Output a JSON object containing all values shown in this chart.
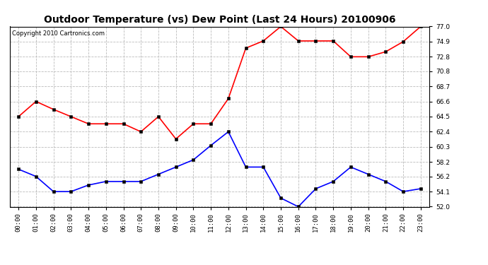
{
  "title": "Outdoor Temperature (vs) Dew Point (Last 24 Hours) 20100906",
  "copyright": "Copyright 2010 Cartronics.com",
  "hours": [
    "00:00",
    "01:00",
    "02:00",
    "03:00",
    "04:00",
    "05:00",
    "06:00",
    "07:00",
    "08:00",
    "09:00",
    "10:00",
    "11:00",
    "12:00",
    "13:00",
    "14:00",
    "15:00",
    "16:00",
    "17:00",
    "18:00",
    "19:00",
    "20:00",
    "21:00",
    "22:00",
    "23:00"
  ],
  "temp": [
    64.5,
    66.6,
    65.5,
    64.5,
    63.5,
    63.5,
    63.5,
    62.4,
    64.5,
    61.4,
    63.5,
    63.5,
    67.0,
    74.0,
    75.0,
    77.0,
    75.0,
    75.0,
    75.0,
    72.8,
    72.8,
    73.5,
    74.9,
    77.0
  ],
  "dew": [
    57.2,
    56.2,
    54.1,
    54.1,
    55.0,
    55.5,
    55.5,
    55.5,
    56.5,
    57.5,
    58.5,
    60.5,
    62.4,
    57.5,
    57.5,
    53.2,
    52.0,
    54.5,
    55.5,
    57.5,
    56.5,
    55.5,
    54.1,
    54.5
  ],
  "temp_color": "red",
  "dew_color": "blue",
  "bg_color": "white",
  "grid_color": "#bbbbbb",
  "ylim": [
    52.0,
    77.0
  ],
  "yticks": [
    52.0,
    54.1,
    56.2,
    58.2,
    60.3,
    62.4,
    64.5,
    66.6,
    68.7,
    70.8,
    72.8,
    74.9,
    77.0
  ],
  "title_fontsize": 10,
  "tick_fontsize": 6.5,
  "copyright_fontsize": 6
}
